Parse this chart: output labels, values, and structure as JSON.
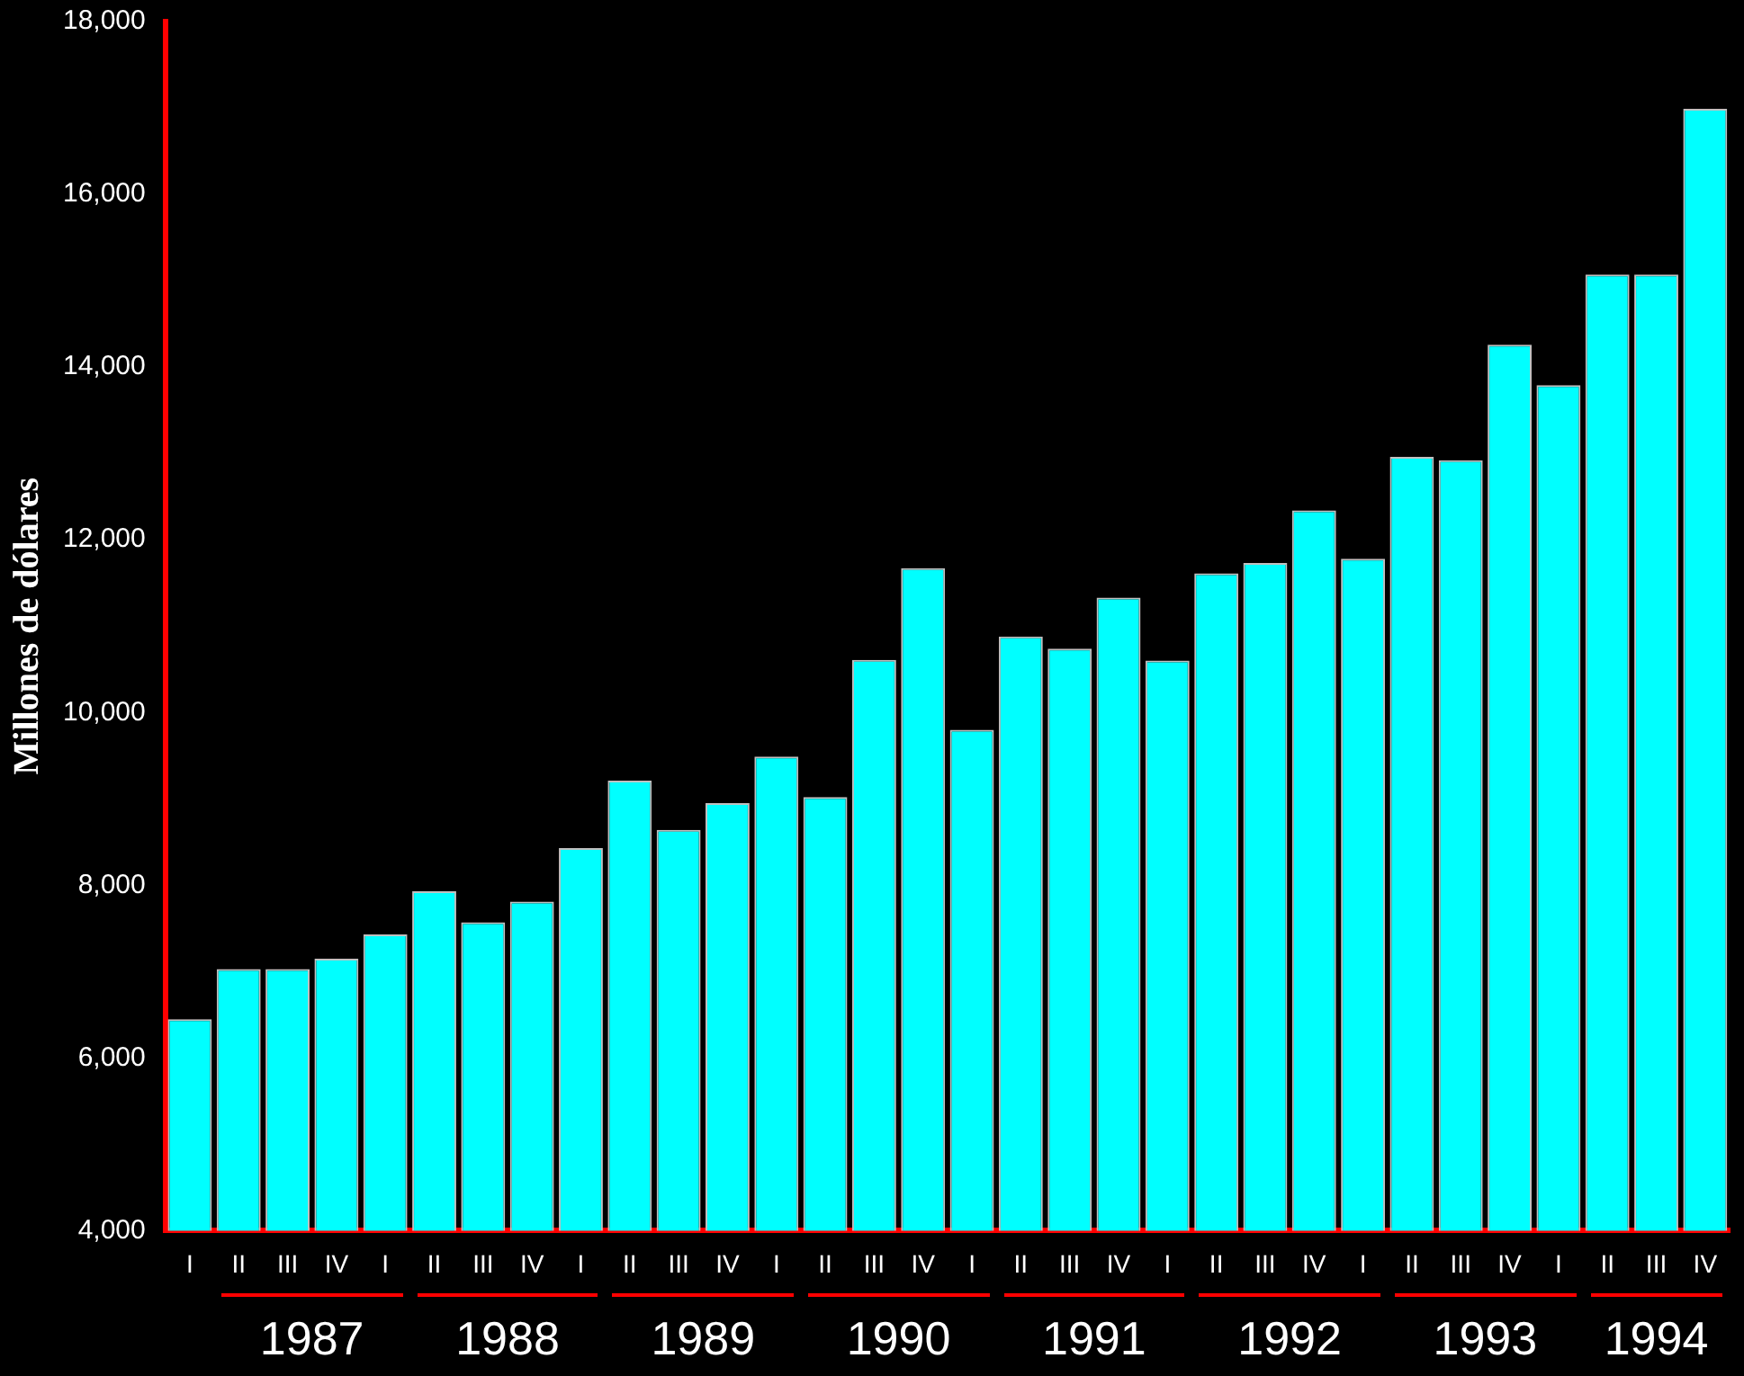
{
  "chart_data": {
    "type": "bar",
    "ylabel": "Millones de dólares",
    "categories": [
      "I",
      "II",
      "III",
      "IV",
      "I",
      "II",
      "III",
      "IV",
      "I",
      "II",
      "III",
      "IV",
      "I",
      "II",
      "III",
      "IV",
      "I",
      "II",
      "III",
      "IV",
      "I",
      "II",
      "III",
      "IV",
      "I",
      "II",
      "III",
      "IV",
      "I",
      "II",
      "III",
      "IV"
    ],
    "values": [
      6450,
      7030,
      7030,
      7150,
      7430,
      7930,
      7570,
      7810,
      8430,
      9210,
      8640,
      8950,
      9490,
      9020,
      10610,
      11670,
      9800,
      10880,
      10740,
      11330,
      10600,
      11610,
      11730,
      12340,
      11780,
      12960,
      12920,
      14260,
      13790,
      15070,
      15070,
      16990
    ],
    "color": "#00ffff",
    "ylim": [
      4000,
      18000
    ],
    "yticks": [
      {
        "value": 4000,
        "label": "4,000"
      },
      {
        "value": 6000,
        "label": "6,000"
      },
      {
        "value": 8000,
        "label": "8,000"
      },
      {
        "value": 10000,
        "label": "10,000"
      },
      {
        "value": 12000,
        "label": "12,000"
      },
      {
        "value": 14000,
        "label": "14,000"
      },
      {
        "value": 16000,
        "label": "16,000"
      },
      {
        "value": 18000,
        "label": "18,000"
      }
    ],
    "annotations": [
      "1987",
      "1988",
      "1989",
      "1990",
      "1991",
      "1992",
      "1993",
      "1994"
    ],
    "grid": false,
    "legend": false
  }
}
